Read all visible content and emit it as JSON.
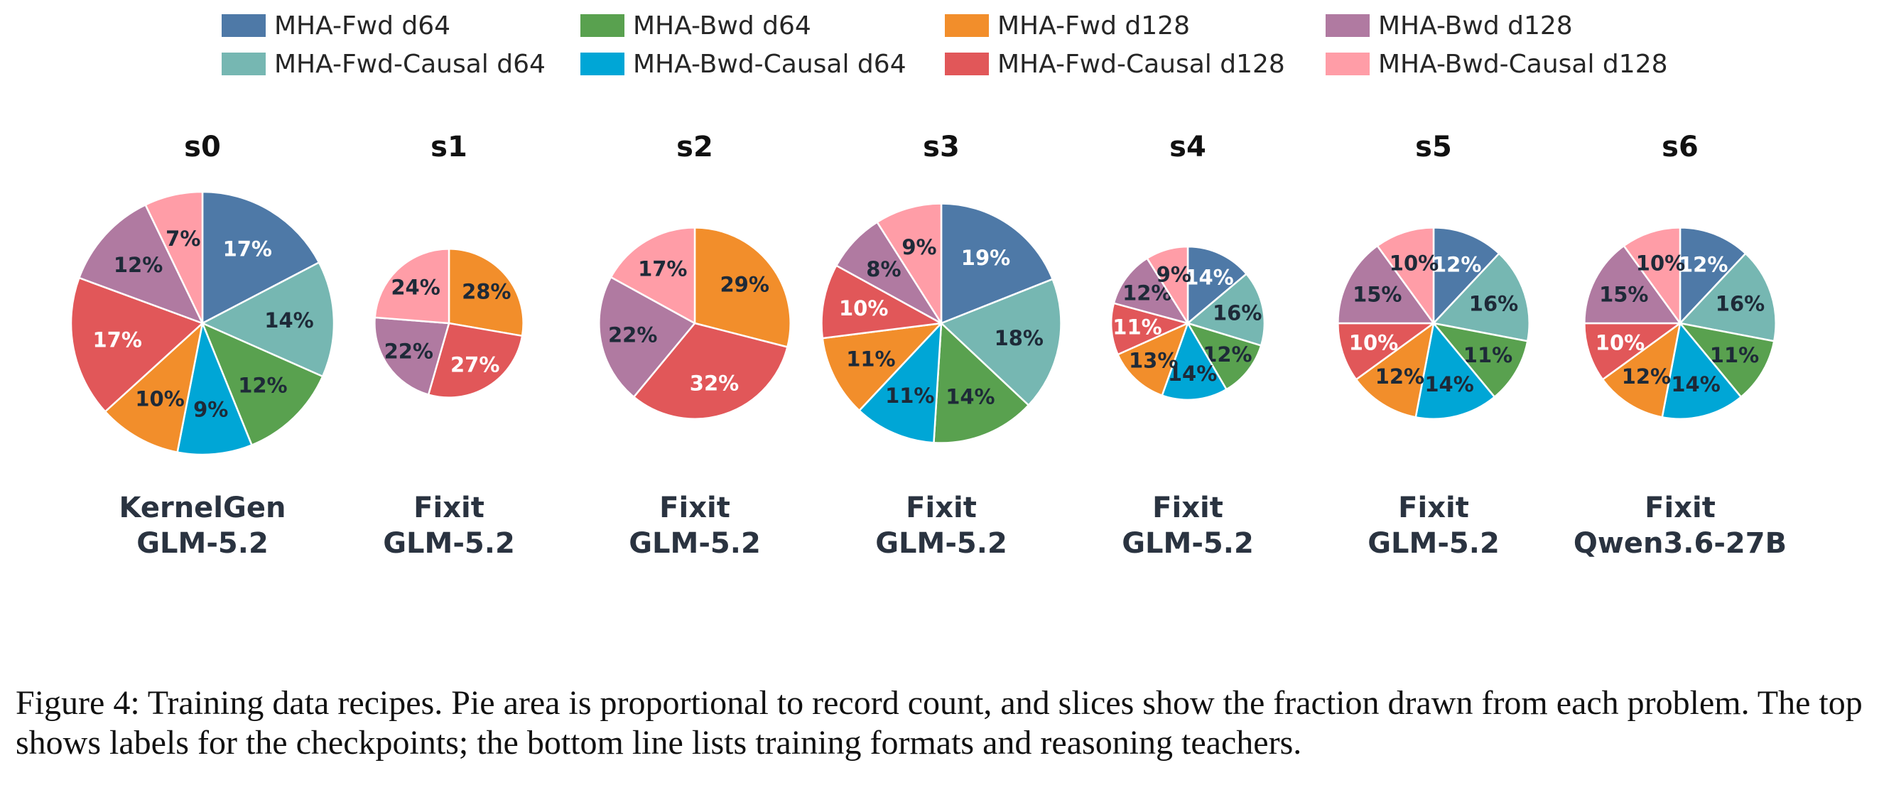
{
  "chart_data": {
    "type": "pie",
    "legend": [
      {
        "name": "MHA-Fwd d64",
        "color": "#4e79a7"
      },
      {
        "name": "MHA-Fwd-Causal d64",
        "color": "#76b7b2"
      },
      {
        "name": "MHA-Bwd d64",
        "color": "#59a14f"
      },
      {
        "name": "MHA-Bwd-Causal d64",
        "color": "#00a6d6"
      },
      {
        "name": "MHA-Fwd d128",
        "color": "#f28e2b"
      },
      {
        "name": "MHA-Fwd-Causal d128",
        "color": "#e15759"
      },
      {
        "name": "MHA-Bwd d128",
        "color": "#b07aa1"
      },
      {
        "name": "MHA-Bwd-Causal d128",
        "color": "#ff9da7"
      }
    ],
    "legend_placement": "top",
    "pies": [
      {
        "title": "s0",
        "format": "KernelGen",
        "teacher": "GLM-5.2",
        "relative_area": 1.0,
        "values": [
          17,
          14,
          12,
          9,
          10,
          17,
          12,
          7
        ],
        "labels": [
          "17%",
          "14%",
          "12%",
          "9%",
          "10%",
          "17%",
          "12%",
          "7%"
        ]
      },
      {
        "title": "s1",
        "format": "Fixit",
        "teacher": "GLM-5.2",
        "relative_area": 0.32,
        "values": [
          0,
          0,
          0,
          0,
          28,
          27,
          22,
          24
        ],
        "labels": [
          "",
          "",
          "",
          "",
          "28%",
          "27%",
          "22%",
          "24%"
        ]
      },
      {
        "title": "s2",
        "format": "Fixit",
        "teacher": "GLM-5.2",
        "relative_area": 0.53,
        "values": [
          0,
          0,
          0,
          0,
          29,
          32,
          22,
          17
        ],
        "labels": [
          "",
          "",
          "",
          "",
          "29%",
          "32%",
          "22%",
          "17%"
        ]
      },
      {
        "title": "s3",
        "format": "Fixit",
        "teacher": "GLM-5.2",
        "relative_area": 0.83,
        "values": [
          19,
          18,
          14,
          11,
          11,
          10,
          8,
          9
        ],
        "labels": [
          "19%",
          "18%",
          "14%",
          "11%",
          "11%",
          "10%",
          "8%",
          "9%"
        ]
      },
      {
        "title": "s4",
        "format": "Fixit",
        "teacher": "GLM-5.2",
        "relative_area": 0.34,
        "values": [
          14,
          16,
          12,
          14,
          13,
          11,
          12,
          9
        ],
        "labels": [
          "14%",
          "16%",
          "12%",
          "14%",
          "13%",
          "11%",
          "12%",
          "9%"
        ]
      },
      {
        "title": "s5",
        "format": "Fixit",
        "teacher": "GLM-5.2",
        "relative_area": 0.53,
        "values": [
          12,
          16,
          11,
          14,
          12,
          10,
          15,
          10
        ],
        "labels": [
          "12%",
          "16%",
          "11%",
          "14%",
          "12%",
          "10%",
          "15%",
          "10%"
        ]
      },
      {
        "title": "s6",
        "format": "Fixit",
        "teacher": "Qwen3.6-27B",
        "relative_area": 0.53,
        "values": [
          12,
          16,
          11,
          14,
          12,
          10,
          15,
          10
        ],
        "labels": [
          "12%",
          "16%",
          "11%",
          "14%",
          "12%",
          "10%",
          "15%",
          "10%"
        ]
      }
    ]
  },
  "label_colors": {
    "dark": "#1e2a38",
    "light": "#ffffff"
  },
  "caption": "Figure 4:  Training data recipes. Pie area is proportional to record count, and slices show the fraction drawn from each problem. The top shows labels for the checkpoints; the bottom line lists training formats and reasoning teachers."
}
